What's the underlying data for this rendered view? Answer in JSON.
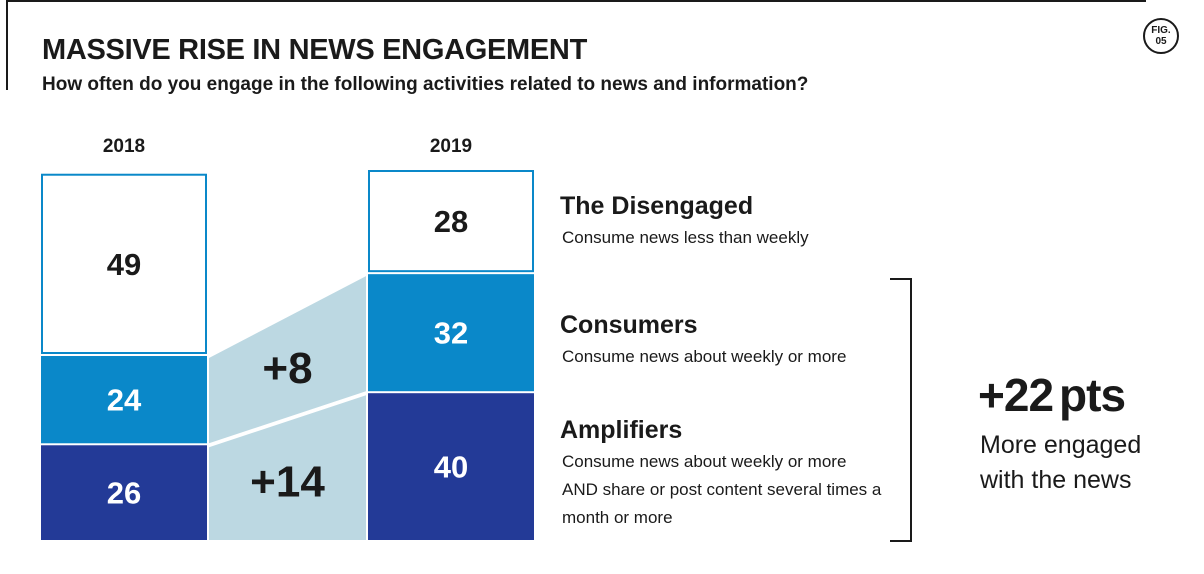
{
  "header": {
    "title": "MASSIVE RISE IN NEWS ENGAGEMENT",
    "subtitle": "How often do you engage in the following activities related to news and information?",
    "fig_label": "FIG.",
    "fig_number": "05"
  },
  "chart_data": {
    "type": "bar",
    "stacked": true,
    "categories": [
      "2018",
      "2019"
    ],
    "series": [
      {
        "name": "Amplifiers",
        "values": [
          26,
          40
        ],
        "color": "#233a97"
      },
      {
        "name": "Consumers",
        "values": [
          24,
          32
        ],
        "color": "#0a88c9"
      },
      {
        "name": "The Disengaged",
        "values": [
          49,
          28
        ],
        "color": "#ffffff",
        "border": "#0a88c9"
      }
    ],
    "changes": [
      {
        "series": "Amplifiers",
        "label": "+14"
      },
      {
        "series": "Consumers",
        "label": "+8"
      }
    ],
    "connector_color": "#bcd8e2"
  },
  "legend": {
    "items": [
      {
        "title": "The Disengaged",
        "desc": "Consume news less than weekly"
      },
      {
        "title": "Consumers",
        "desc": "Consume news about weekly or more"
      },
      {
        "title": "Amplifiers",
        "desc": "Consume news about weekly or more AND share or post content several times a month or more"
      }
    ]
  },
  "summary": {
    "value": "+22",
    "unit": "pts",
    "label": "More engaged with the news"
  }
}
